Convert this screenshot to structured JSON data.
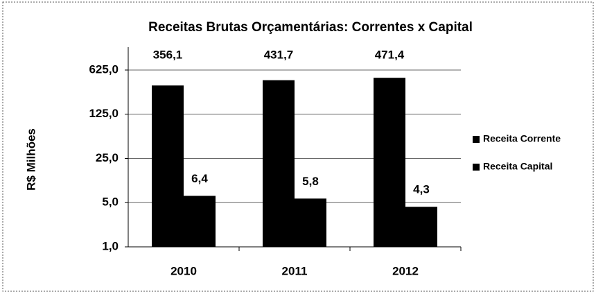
{
  "chart_data": {
    "type": "bar",
    "title": "Receitas Brutas Orçamentárias: Correntes x Capital",
    "y_label": "R$ Milhões",
    "categories": [
      "2010",
      "2011",
      "2012"
    ],
    "series": [
      {
        "name": "Receita Corrente",
        "color": "#000000",
        "values": [
          356.1,
          431.7,
          471.4
        ],
        "value_labels": [
          "356,1",
          "431,7",
          "471,4"
        ]
      },
      {
        "name": "Receita Capital",
        "color": "#000000",
        "values": [
          6.4,
          5.8,
          4.3
        ],
        "value_labels": [
          "6,4",
          "5,8",
          "4,3"
        ]
      }
    ],
    "log_scale": true,
    "log_base": 5,
    "ylim": [
      1,
      625
    ],
    "yticks": [
      {
        "value": 1,
        "label": "1,0"
      },
      {
        "value": 5,
        "label": "5,0"
      },
      {
        "value": 25,
        "label": "25,0"
      },
      {
        "value": 125,
        "label": "125,0"
      },
      {
        "value": 625,
        "label": "625,0"
      }
    ],
    "grid": true,
    "legend": "right"
  }
}
